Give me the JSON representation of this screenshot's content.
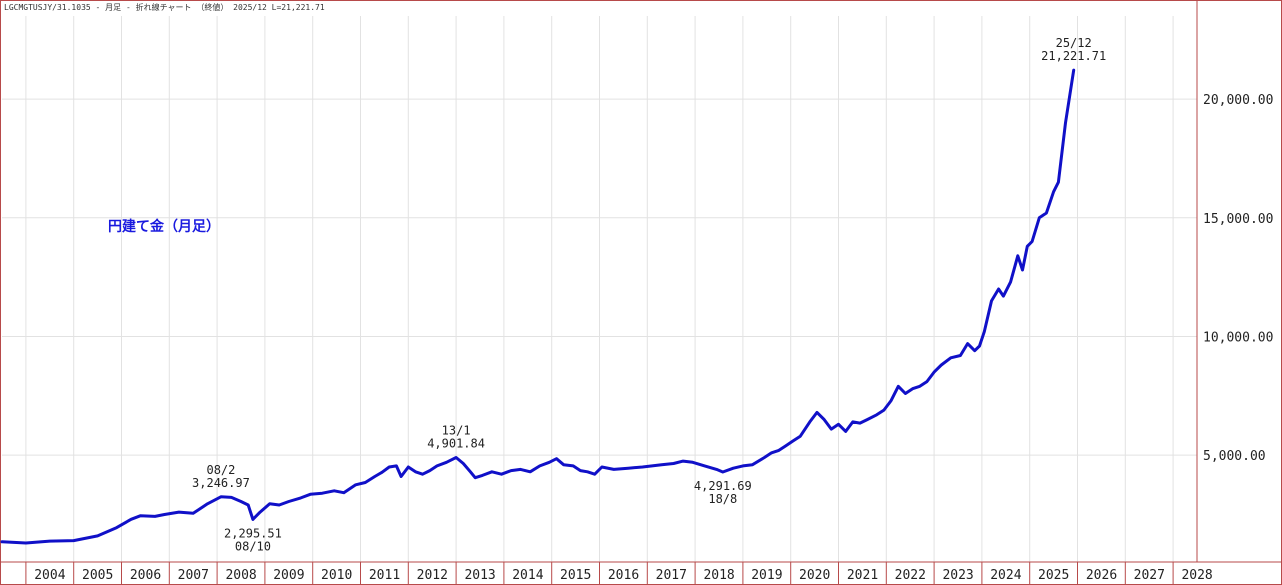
{
  "header": {
    "text": "LGCMGTUSJY/31.1035 - 月足 - 折れ線チャート （終値） 2025/12 L=21,221.71"
  },
  "series_title": "円建て金（月足）",
  "colors": {
    "line": "#1010c8",
    "grid": "#e2e2e2",
    "frame": "#b74a4a",
    "axis_text": "#222222"
  },
  "annotations": [
    {
      "id": "peak-2008",
      "x": 2008.08,
      "y": 3246.97,
      "lines": [
        "08/2",
        "3,246.97"
      ],
      "pos": "above"
    },
    {
      "id": "low-2008",
      "x": 2008.75,
      "y": 2295.51,
      "lines": [
        "2,295.51",
        "08/10"
      ],
      "pos": "below"
    },
    {
      "id": "peak-2013",
      "x": 2013.0,
      "y": 4901.84,
      "lines": [
        "13/1",
        "4,901.84"
      ],
      "pos": "above"
    },
    {
      "id": "low-2018",
      "x": 2018.58,
      "y": 4291.69,
      "lines": [
        "4,291.69",
        "18/8"
      ],
      "pos": "below"
    },
    {
      "id": "last-2025",
      "x": 2025.92,
      "y": 21221.71,
      "lines": [
        "25/12",
        "21,221.71"
      ],
      "pos": "above"
    }
  ],
  "chart_data": {
    "type": "line",
    "title": "円建て金（月足）",
    "xlabel": "",
    "ylabel": "",
    "xlim": [
      2003.5,
      2028.5
    ],
    "ylim": [
      500,
      23500
    ],
    "x_ticks": [
      "2004",
      "2005",
      "2006",
      "2007",
      "2008",
      "2009",
      "2010",
      "2011",
      "2012",
      "2013",
      "2014",
      "2015",
      "2016",
      "2017",
      "2018",
      "2019",
      "2020",
      "2021",
      "2022",
      "2023",
      "2024",
      "2025",
      "2026",
      "2027",
      "2028"
    ],
    "y_ticks": [
      "5,000.00",
      "10,000.00",
      "15,000.00",
      "20,000.00"
    ],
    "y_tick_values": [
      5000,
      10000,
      15000,
      20000
    ],
    "grid": true,
    "series": [
      {
        "x": [
          2003.5,
          2004.0,
          2004.5,
          2005.0,
          2005.5,
          2005.9,
          2006.2,
          2006.4,
          2006.7,
          2006.9,
          2007.2,
          2007.5,
          2007.8,
          2008.08,
          2008.3,
          2008.5,
          2008.65,
          2008.75,
          2008.9,
          2009.1,
          2009.3,
          2009.5,
          2009.75,
          2009.95,
          2010.2,
          2010.45,
          2010.65,
          2010.9,
          2011.1,
          2011.3,
          2011.45,
          2011.6,
          2011.75,
          2011.85,
          2012.0,
          2012.15,
          2012.3,
          2012.45,
          2012.6,
          2012.8,
          2013.0,
          2013.15,
          2013.3,
          2013.4,
          2013.55,
          2013.75,
          2013.95,
          2014.15,
          2014.35,
          2014.55,
          2014.75,
          2014.95,
          2015.1,
          2015.25,
          2015.45,
          2015.6,
          2015.75,
          2015.9,
          2016.05,
          2016.3,
          2016.6,
          2016.9,
          2017.1,
          2017.3,
          2017.55,
          2017.75,
          2017.95,
          2018.2,
          2018.45,
          2018.58,
          2018.8,
          2019.0,
          2019.2,
          2019.45,
          2019.6,
          2019.75,
          2019.9,
          2020.05,
          2020.2,
          2020.4,
          2020.55,
          2020.7,
          2020.85,
          2021.0,
          2021.15,
          2021.3,
          2021.45,
          2021.6,
          2021.8,
          2021.95,
          2022.1,
          2022.25,
          2022.4,
          2022.55,
          2022.7,
          2022.85,
          2023.0,
          2023.15,
          2023.35,
          2023.55,
          2023.7,
          2023.85,
          2023.95,
          2024.05,
          2024.2,
          2024.35,
          2024.45,
          2024.6,
          2024.75,
          2024.85,
          2024.95,
          2025.05,
          2025.2,
          2025.35,
          2025.5,
          2025.6,
          2025.75,
          2025.92
        ],
        "y": [
          1350,
          1300,
          1380,
          1400,
          1600,
          1950,
          2300,
          2450,
          2420,
          2500,
          2600,
          2550,
          2950,
          3246.97,
          3220,
          3050,
          2900,
          2295.51,
          2600,
          2950,
          2900,
          3050,
          3200,
          3350,
          3400,
          3500,
          3420,
          3750,
          3850,
          4100,
          4280,
          4500,
          4550,
          4100,
          4500,
          4300,
          4200,
          4350,
          4550,
          4700,
          4901.84,
          4650,
          4300,
          4050,
          4150,
          4300,
          4200,
          4350,
          4400,
          4300,
          4550,
          4700,
          4850,
          4600,
          4550,
          4350,
          4300,
          4200,
          4500,
          4400,
          4450,
          4500,
          4550,
          4600,
          4650,
          4750,
          4700,
          4550,
          4400,
          4291.69,
          4450,
          4550,
          4600,
          4900,
          5100,
          5200,
          5400,
          5600,
          5800,
          6400,
          6800,
          6500,
          6100,
          6300,
          6000,
          6400,
          6350,
          6500,
          6700,
          6900,
          7300,
          7900,
          7600,
          7800,
          7900,
          8100,
          8500,
          8800,
          9100,
          9200,
          9700,
          9400,
          9600,
          10200,
          11500,
          12000,
          11700,
          12300,
          13400,
          12800,
          13800,
          14000,
          15000,
          15200,
          16100,
          16500,
          19000,
          21221.71
        ]
      }
    ]
  }
}
